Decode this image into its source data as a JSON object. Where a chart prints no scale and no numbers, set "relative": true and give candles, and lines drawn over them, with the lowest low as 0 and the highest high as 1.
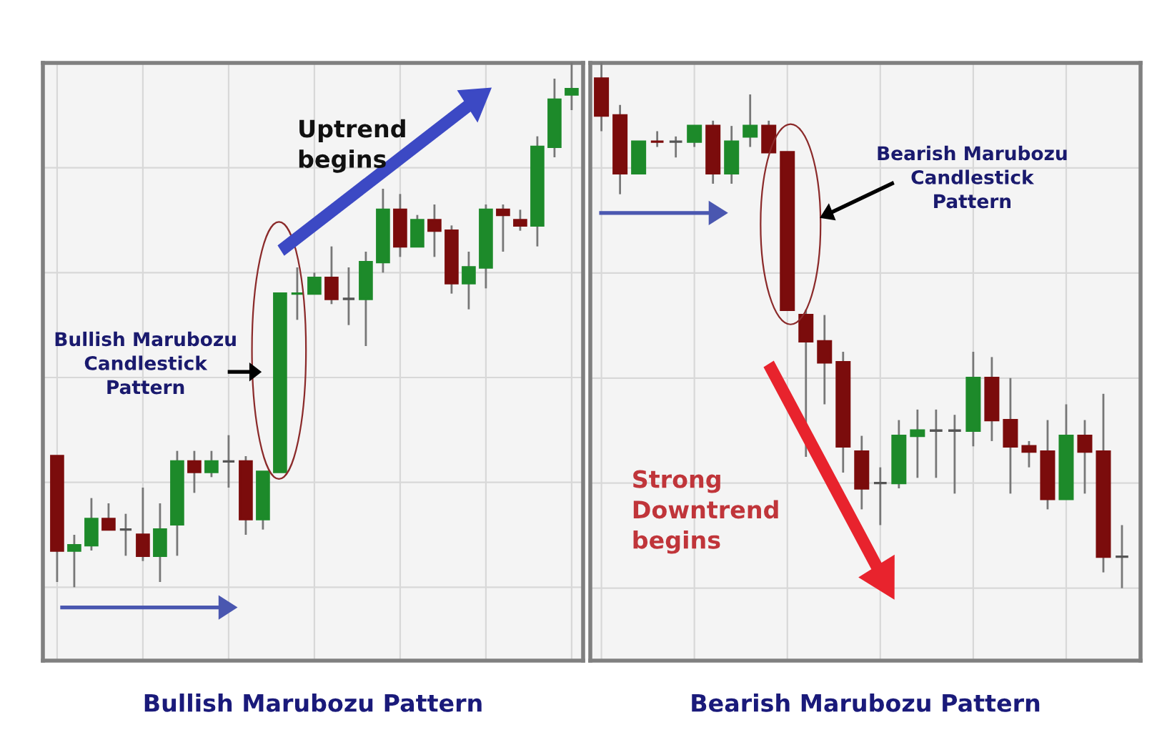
{
  "chart_data": [
    {
      "type": "candlestick",
      "title": "Bullish Marubozu Pattern",
      "relative": true,
      "grid": true,
      "tick_labels": false,
      "categories": [
        null,
        null,
        null,
        null,
        null,
        null,
        null,
        null,
        null,
        null,
        null,
        null,
        null,
        null,
        null,
        null,
        null,
        null,
        null,
        null,
        null,
        null,
        null,
        null,
        null,
        null,
        null,
        null,
        null,
        null,
        null
      ],
      "ohlc": [
        [
          0.25,
          0.25,
          0.01,
          0.07
        ],
        [
          0.07,
          0.1,
          0,
          0.08
        ],
        [
          0.08,
          0.17,
          0.07,
          0.13
        ],
        [
          0.13,
          0.16,
          0.11,
          0.11
        ],
        [
          0.11,
          0.14,
          0.06,
          0.11
        ],
        [
          0.1,
          0.19,
          0.05,
          0.06
        ],
        [
          0.06,
          0.16,
          0.01,
          0.11
        ],
        [
          0.12,
          0.26,
          0.06,
          0.24
        ],
        [
          0.24,
          0.26,
          0.18,
          0.22
        ],
        [
          0.22,
          0.26,
          0.21,
          0.24
        ],
        [
          0.24,
          0.29,
          0.19,
          0.24
        ],
        [
          0.24,
          0.25,
          0.1,
          0.13
        ],
        [
          0.13,
          0.22,
          0.11,
          0.22
        ],
        [
          0.22,
          0.56,
          0.22,
          0.56
        ],
        [
          0.56,
          0.61,
          0.51,
          0.56
        ],
        [
          0.56,
          0.6,
          0.56,
          0.59
        ],
        [
          0.59,
          0.65,
          0.54,
          0.55
        ],
        [
          0.55,
          0.61,
          0.5,
          0.55
        ],
        [
          0.55,
          0.64,
          0.46,
          0.62
        ],
        [
          0.62,
          0.76,
          0.6,
          0.72
        ],
        [
          0.72,
          0.75,
          0.63,
          0.65
        ],
        [
          0.65,
          0.71,
          0.65,
          0.7
        ],
        [
          0.7,
          0.73,
          0.63,
          0.68
        ],
        [
          0.68,
          0.69,
          0.56,
          0.58
        ],
        [
          0.58,
          0.64,
          0.53,
          0.61
        ],
        [
          0.61,
          0.73,
          0.57,
          0.72
        ],
        [
          0.72,
          0.73,
          0.64,
          0.71
        ],
        [
          0.7,
          0.72,
          0.68,
          0.69
        ],
        [
          0.69,
          0.86,
          0.65,
          0.84
        ],
        [
          0.84,
          0.97,
          0.82,
          0.93
        ],
        [
          0.94,
          1,
          0.91,
          0.95
        ]
      ],
      "colors": [
        "#7b0c0c",
        "#1d8a2a",
        "#1d8a2a",
        "#7b0c0c",
        "#555555",
        "#7b0c0c",
        "#1d8a2a",
        "#1d8a2a",
        "#7b0c0c",
        "#1d8a2a",
        "#555555",
        "#7b0c0c",
        "#1d8a2a",
        "#1d8a2a",
        "#1d8a2a",
        "#1d8a2a",
        "#7b0c0c",
        "#555555",
        "#1d8a2a",
        "#1d8a2a",
        "#7b0c0c",
        "#1d8a2a",
        "#7b0c0c",
        "#7b0c0c",
        "#1d8a2a",
        "#1d8a2a",
        "#7b0c0c",
        "#7b0c0c",
        "#1d8a2a",
        "#1d8a2a",
        "#1d8a2a"
      ],
      "annotations": [
        "Uptrend\nbegins",
        "Bullish Marubozu\nCandlestick\nPattern"
      ]
    },
    {
      "type": "candlestick",
      "title": "Bearish Marubozu Pattern",
      "relative": true,
      "grid": true,
      "tick_labels": false,
      "categories": [
        null,
        null,
        null,
        null,
        null,
        null,
        null,
        null,
        null,
        null,
        null,
        null,
        null,
        null,
        null,
        null,
        null,
        null,
        null,
        null,
        null,
        null,
        null,
        null,
        null,
        null,
        null,
        null,
        null
      ],
      "ohlc": [
        [
          0.97,
          1,
          0.87,
          0.9
        ],
        [
          0.9,
          0.92,
          0.75,
          0.79
        ],
        [
          0.79,
          0.85,
          0.79,
          0.85
        ],
        [
          0.85,
          0.87,
          0.84,
          0.85
        ],
        [
          0.85,
          0.86,
          0.82,
          0.85
        ],
        [
          0.85,
          0.88,
          0.84,
          0.88
        ],
        [
          0.88,
          0.89,
          0.77,
          0.79
        ],
        [
          0.79,
          0.88,
          0.77,
          0.85
        ],
        [
          0.86,
          0.94,
          0.84,
          0.88
        ],
        [
          0.88,
          0.89,
          0.83,
          0.83
        ],
        [
          0.83,
          0.83,
          0.53,
          0.53
        ],
        [
          0.52,
          0.53,
          0.25,
          0.47
        ],
        [
          0.47,
          0.52,
          0.35,
          0.43
        ],
        [
          0.43,
          0.45,
          0.22,
          0.27
        ],
        [
          0.26,
          0.29,
          0.15,
          0.19
        ],
        [
          0.2,
          0.23,
          0.12,
          0.2
        ],
        [
          0.2,
          0.32,
          0.19,
          0.29
        ],
        [
          0.29,
          0.34,
          0.21,
          0.3
        ],
        [
          0.3,
          0.34,
          0.21,
          0.3
        ],
        [
          0.3,
          0.33,
          0.18,
          0.3
        ],
        [
          0.3,
          0.45,
          0.27,
          0.4
        ],
        [
          0.4,
          0.44,
          0.28,
          0.32
        ],
        [
          0.32,
          0.4,
          0.18,
          0.27
        ],
        [
          0.27,
          0.28,
          0.23,
          0.26
        ],
        [
          0.26,
          0.32,
          0.15,
          0.17
        ],
        [
          0.17,
          0.35,
          0.17,
          0.29
        ],
        [
          0.29,
          0.32,
          0.18,
          0.26
        ],
        [
          0.26,
          0.37,
          0.03,
          0.06
        ],
        [
          0.06,
          0.12,
          0,
          0.06
        ]
      ],
      "colors": [
        "#7b0c0c",
        "#7b0c0c",
        "#1d8a2a",
        "#7b0c0c",
        "#555555",
        "#1d8a2a",
        "#7b0c0c",
        "#1d8a2a",
        "#1d8a2a",
        "#7b0c0c",
        "#7b0c0c",
        "#7b0c0c",
        "#7b0c0c",
        "#7b0c0c",
        "#7b0c0c",
        "#555555",
        "#1d8a2a",
        "#1d8a2a",
        "#555555",
        "#555555",
        "#1d8a2a",
        "#7b0c0c",
        "#7b0c0c",
        "#7b0c0c",
        "#7b0c0c",
        "#1d8a2a",
        "#7b0c0c",
        "#7b0c0c",
        "#555555"
      ],
      "annotations": [
        "Bearish Marubozu\nCandlestick\nPattern",
        "Strong\nDowntrend\nbegins"
      ]
    }
  ]
}
